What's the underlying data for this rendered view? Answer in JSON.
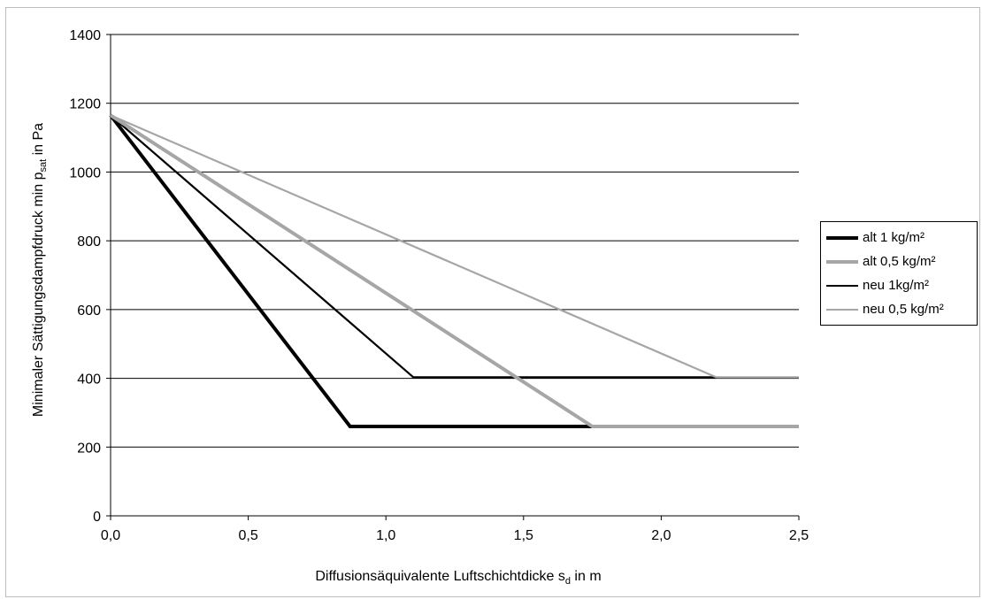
{
  "chart_data": {
    "type": "line",
    "xlabel": "Diffusionsäquivalente Luftschichtdicke s_d in m",
    "xlabel_main": "Diffusionsäquivalente Luftschichtdicke s",
    "xlabel_sub": "d",
    "xlabel_tail": " in m",
    "ylabel": "Minimaler Sättigungsdampfdruck min p_sat in Pa",
    "ylabel_main": "Minimaler Sättigungsdampfdruck min p",
    "ylabel_sub": "sat",
    "ylabel_tail": " in Pa",
    "xlim": [
      0,
      2.5
    ],
    "ylim": [
      0,
      1400
    ],
    "x_ticks": [
      "0,0",
      "0,5",
      "1,0",
      "1,5",
      "2,0",
      "2,5"
    ],
    "y_ticks": [
      "0",
      "200",
      "400",
      "600",
      "800",
      "1000",
      "1200",
      "1400"
    ],
    "grid": "horizontal",
    "legend_position": "right",
    "series": [
      {
        "name": "alt 1 kg/m²",
        "color": "#000000",
        "width": "thick",
        "x": [
          0,
          0.87,
          1.75
        ],
        "y": [
          1165,
          260,
          260
        ]
      },
      {
        "name": "alt 0,5 kg/m²",
        "color": "#a6a6a6",
        "width": "thick",
        "x": [
          0,
          1.75,
          2.5
        ],
        "y": [
          1165,
          260,
          260
        ]
      },
      {
        "name": "neu 1kg/m²",
        "color": "#000000",
        "width": "thin",
        "x": [
          0,
          1.1,
          2.2
        ],
        "y": [
          1165,
          403,
          403
        ]
      },
      {
        "name": "neu 0,5 kg/m²",
        "color": "#a6a6a6",
        "width": "thin",
        "x": [
          0,
          2.2,
          2.5
        ],
        "y": [
          1165,
          403,
          403
        ]
      }
    ]
  }
}
